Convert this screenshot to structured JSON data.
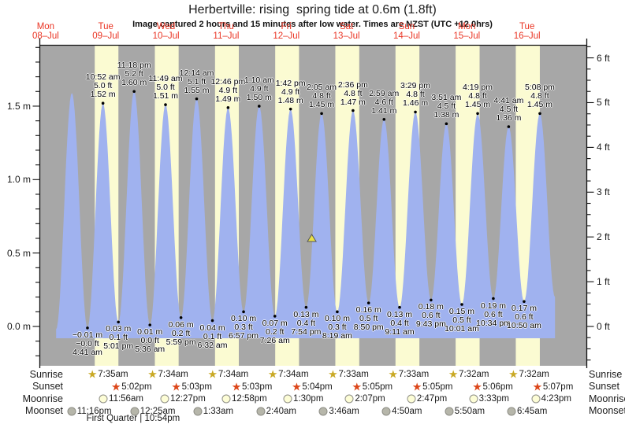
{
  "chart_data": {
    "type": "area",
    "title": "Herbertville: rising  spring tide at 0.6m (1.8ft)",
    "subtitle": "Image captured 2 hours and 15 minutes after low water. Times are NZST (UTC +12.0hrs)",
    "x_days": [
      {
        "weekday": "Mon",
        "date": "08–Jul"
      },
      {
        "weekday": "Tue",
        "date": "09–Jul"
      },
      {
        "weekday": "Wed",
        "date": "10–Jul"
      },
      {
        "weekday": "Thu",
        "date": "11–Jul"
      },
      {
        "weekday": "Fri",
        "date": "12–Jul"
      },
      {
        "weekday": "Sat",
        "date": "13–Jul"
      },
      {
        "weekday": "Sun",
        "date": "14–Jul"
      },
      {
        "weekday": "Mon",
        "date": "15–Jul"
      },
      {
        "weekday": "Tue",
        "date": "16–Jul"
      }
    ],
    "y_left": {
      "unit": "m",
      "ticks": [
        0.0,
        0.5,
        1.0,
        1.5
      ],
      "tick_labels": [
        "0.0 m",
        "0.5 m",
        "1.0 m",
        "1.5 m"
      ]
    },
    "y_right": {
      "unit": "ft",
      "ticks": [
        0,
        1,
        2,
        3,
        4,
        5,
        6
      ],
      "tick_labels": [
        "0 ft",
        "1 ft",
        "2 ft",
        "3 ft",
        "4 ft",
        "5 ft",
        "6 ft"
      ]
    },
    "extremes": [
      {
        "day": 0,
        "time": "4:10 pm",
        "m": -0.02,
        "type": "low",
        "show_label": false
      },
      {
        "day": 0,
        "time": "10:28 pm",
        "m": 1.59,
        "type": "high",
        "show_label": false
      },
      {
        "day": 1,
        "time": "4:41 am",
        "m": -0.01,
        "type": "low",
        "m_text": "−0.01 m",
        "ft_text": "−0.0 ft"
      },
      {
        "day": 1,
        "time": "10:52 am",
        "m": 1.52,
        "type": "high",
        "ft_text": "5.0 ft",
        "m_text": "1.52 m"
      },
      {
        "day": 1,
        "time": "5:01 pm",
        "m": 0.03,
        "type": "low",
        "m_text": "0.03 m",
        "ft_text": "0.1 ft"
      },
      {
        "day": 1,
        "time": "11:18 pm",
        "m": 1.6,
        "type": "high",
        "ft_text": "5.2 ft",
        "m_text": "1.60 m"
      },
      {
        "day": 2,
        "time": "5:36 am",
        "m": 0.01,
        "type": "low",
        "m_text": "0.01 m",
        "ft_text": "0.0 ft"
      },
      {
        "day": 2,
        "time": "11:49 am",
        "m": 1.51,
        "type": "high",
        "ft_text": "5.0 ft",
        "m_text": "1.51 m"
      },
      {
        "day": 2,
        "time": "5:59 pm",
        "m": 0.06,
        "type": "low",
        "m_text": "0.06 m",
        "ft_text": "0.2 ft"
      },
      {
        "day": 3,
        "time": "12:14 am",
        "m": 1.55,
        "type": "high",
        "ft_text": "5.1 ft",
        "m_text": "1.55 m"
      },
      {
        "day": 3,
        "time": "6:32 am",
        "m": 0.04,
        "type": "low",
        "m_text": "0.04 m",
        "ft_text": "0.1 ft"
      },
      {
        "day": 3,
        "time": "12:46 pm",
        "m": 1.49,
        "type": "high",
        "ft_text": "4.9 ft",
        "m_text": "1.49 m"
      },
      {
        "day": 3,
        "time": "6:57 pm",
        "m": 0.1,
        "type": "low",
        "m_text": "0.10 m",
        "ft_text": "0.3 ft"
      },
      {
        "day": 4,
        "time": "1:10 am",
        "m": 1.5,
        "type": "high",
        "ft_text": "4.9 ft",
        "m_text": "1.50 m"
      },
      {
        "day": 4,
        "time": "7:26 am",
        "m": 0.07,
        "type": "low",
        "m_text": "0.07 m",
        "ft_text": "0.2 ft"
      },
      {
        "day": 4,
        "time": "1:42 pm",
        "m": 1.48,
        "type": "high",
        "ft_text": "4.9 ft",
        "m_text": "1.48 m"
      },
      {
        "day": 4,
        "time": "7:54 pm",
        "m": 0.13,
        "type": "low",
        "m_text": "0.13 m",
        "ft_text": "0.4 ft"
      },
      {
        "day": 5,
        "time": "2:05 am",
        "m": 1.45,
        "type": "high",
        "ft_text": "4.8 ft",
        "m_text": "1.45 m"
      },
      {
        "day": 5,
        "time": "8:19 am",
        "m": 0.1,
        "type": "low",
        "m_text": "0.10 m",
        "ft_text": "0.3 ft"
      },
      {
        "day": 5,
        "time": "2:36 pm",
        "m": 1.47,
        "type": "high",
        "ft_text": "4.8 ft",
        "m_text": "1.47 m"
      },
      {
        "day": 5,
        "time": "8:50 pm",
        "m": 0.16,
        "type": "low",
        "m_text": "0.16 m",
        "ft_text": "0.5 ft"
      },
      {
        "day": 6,
        "time": "2:59 am",
        "m": 1.41,
        "type": "high",
        "ft_text": "4.6 ft",
        "m_text": "1.41 m"
      },
      {
        "day": 6,
        "time": "9:11 am",
        "m": 0.13,
        "type": "low",
        "m_text": "0.13 m",
        "ft_text": "0.4 ft"
      },
      {
        "day": 6,
        "time": "3:29 pm",
        "m": 1.46,
        "type": "high",
        "ft_text": "4.8 ft",
        "m_text": "1.46 m"
      },
      {
        "day": 6,
        "time": "9:43 pm",
        "m": 0.18,
        "type": "low",
        "m_text": "0.18 m",
        "ft_text": "0.6 ft"
      },
      {
        "day": 7,
        "time": "3:51 am",
        "m": 1.38,
        "type": "high",
        "ft_text": "4.5 ft",
        "m_text": "1.38 m"
      },
      {
        "day": 7,
        "time": "10:01 am",
        "m": 0.15,
        "type": "low",
        "m_text": "0.15 m",
        "ft_text": "0.5 ft"
      },
      {
        "day": 7,
        "time": "4:19 pm",
        "m": 1.45,
        "type": "high",
        "ft_text": "4.8 ft",
        "m_text": "1.45 m"
      },
      {
        "day": 7,
        "time": "10:34 pm",
        "m": 0.19,
        "type": "low",
        "m_text": "0.19 m",
        "ft_text": "0.6 ft"
      },
      {
        "day": 8,
        "time": "4:41 am",
        "m": 1.36,
        "type": "high",
        "ft_text": "4.5 ft",
        "m_text": "1.36 m"
      },
      {
        "day": 8,
        "time": "10:50 am",
        "m": 0.17,
        "type": "low",
        "m_text": "0.17 m",
        "ft_text": "0.6 ft"
      },
      {
        "day": 8,
        "time": "5:08 pm",
        "m": 1.45,
        "type": "high",
        "ft_text": "4.8 ft",
        "m_text": "1.45 m"
      },
      {
        "day": 8,
        "time": "11:10 pm",
        "m": 0.2,
        "type": "low",
        "show_label": false
      }
    ],
    "current_marker": {
      "day": 4,
      "time": "10:09 pm",
      "level_m": 0.6
    }
  },
  "astro": {
    "row_labels": [
      "Sunrise",
      "Sunset",
      "Moonrise",
      "Moonset"
    ],
    "rows": [
      {
        "name": "Sunrise",
        "icon": "sunrise-star-icon",
        "events": [
          {
            "day": 1,
            "time": "7:35am"
          },
          {
            "day": 2,
            "time": "7:34am"
          },
          {
            "day": 3,
            "time": "7:34am"
          },
          {
            "day": 4,
            "time": "7:34am"
          },
          {
            "day": 5,
            "time": "7:33am"
          },
          {
            "day": 6,
            "time": "7:33am"
          },
          {
            "day": 7,
            "time": "7:32am"
          },
          {
            "day": 8,
            "time": "7:32am"
          }
        ]
      },
      {
        "name": "Sunset",
        "icon": "sunset-star-icon",
        "events": [
          {
            "day": 1,
            "time": "5:02pm"
          },
          {
            "day": 2,
            "time": "5:03pm"
          },
          {
            "day": 3,
            "time": "5:03pm"
          },
          {
            "day": 4,
            "time": "5:04pm"
          },
          {
            "day": 5,
            "time": "5:05pm"
          },
          {
            "day": 6,
            "time": "5:05pm"
          },
          {
            "day": 7,
            "time": "5:06pm"
          },
          {
            "day": 8,
            "time": "5:07pm"
          }
        ]
      },
      {
        "name": "Moonrise",
        "icon": "moonrise-circle-icon",
        "events": [
          {
            "day": 1,
            "time": "11:56am"
          },
          {
            "day": 2,
            "time": "12:27pm"
          },
          {
            "day": 3,
            "time": "12:58pm"
          },
          {
            "day": 4,
            "time": "1:30pm"
          },
          {
            "day": 5,
            "time": "2:07pm"
          },
          {
            "day": 6,
            "time": "2:47pm"
          },
          {
            "day": 7,
            "time": "3:33pm"
          },
          {
            "day": 8,
            "time": "4:23pm"
          }
        ]
      },
      {
        "name": "Moonset",
        "icon": "moonset-circle-icon",
        "events": [
          {
            "day": 0,
            "time": "11:16pm"
          },
          {
            "day": 2,
            "time": "12:25am"
          },
          {
            "day": 3,
            "time": "1:33am"
          },
          {
            "day": 4,
            "time": "2:40am"
          },
          {
            "day": 5,
            "time": "3:46am"
          },
          {
            "day": 6,
            "time": "4:50am"
          },
          {
            "day": 7,
            "time": "5:50am"
          },
          {
            "day": 8,
            "time": "6:45am"
          }
        ]
      }
    ],
    "moon_phase": {
      "text": "First Quarter | 10:54pm",
      "day": 1,
      "time": "10:54pm"
    }
  },
  "colors": {
    "night_band": "#a7a7a7",
    "day_band": "#fbfbd2",
    "tide_fill": "#a0b2ef",
    "axis": "#111111",
    "day_label": "#ea3423",
    "marker_fill": "#e8e049",
    "marker_stroke": "#555555",
    "sunrise_icon": "#c9a925",
    "sunset_icon": "#dc4619",
    "moonrise_icon": "#fdfdd6",
    "moonset_icon": "#b6b6aa"
  }
}
